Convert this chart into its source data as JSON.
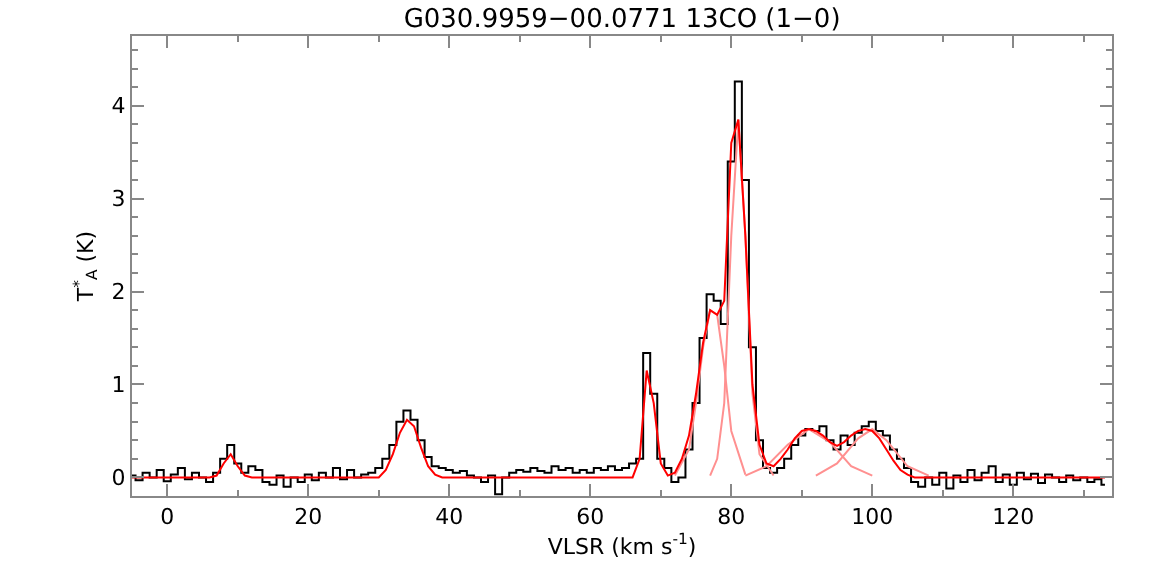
{
  "chart_data": {
    "type": "line",
    "title": "G030.9959−00.0771 13CO (1−0)",
    "xlabel": "VLSR (km s$^{-1}$)",
    "ylabel": "T$^{*}$$_{A}$ (K)",
    "xlim": [
      -5,
      134
    ],
    "ylim": [
      -0.2,
      4.75
    ],
    "xticks": [
      0,
      20,
      40,
      60,
      80,
      100,
      120
    ],
    "yticks": [
      0,
      1,
      2,
      3,
      4
    ],
    "series": [
      {
        "type": "step",
        "color": "#000000",
        "x": [
          -5,
          -4,
          -3,
          -2,
          -1,
          0,
          1,
          2,
          3,
          4,
          5,
          6,
          7,
          8,
          9,
          10,
          11,
          12,
          13,
          14,
          15,
          16,
          17,
          18,
          19,
          20,
          21,
          22,
          23,
          24,
          25,
          26,
          27,
          28,
          29,
          30,
          31,
          32,
          33,
          34,
          35,
          36,
          37,
          38,
          39,
          40,
          41,
          42,
          43,
          44,
          45,
          46,
          47,
          48,
          49,
          50,
          51,
          52,
          53,
          54,
          55,
          56,
          57,
          58,
          59,
          60,
          61,
          62,
          63,
          64,
          65,
          66,
          67,
          68,
          69,
          70,
          71,
          72,
          73,
          74,
          75,
          76,
          77,
          78,
          79,
          80,
          81,
          82,
          83,
          84,
          85,
          86,
          87,
          88,
          89,
          90,
          91,
          92,
          93,
          94,
          95,
          96,
          97,
          98,
          99,
          100,
          101,
          102,
          103,
          104,
          105,
          106,
          107,
          108,
          109,
          110,
          111,
          112,
          113,
          114,
          115,
          116,
          117,
          118,
          119,
          120,
          121,
          122,
          123,
          124,
          125,
          126,
          127,
          128,
          129,
          130,
          131,
          132,
          133
        ],
        "values": [
          0.02,
          -0.03,
          0.05,
          0.0,
          0.08,
          -0.04,
          0.03,
          0.1,
          -0.02,
          0.05,
          0.0,
          -0.05,
          0.05,
          0.2,
          0.35,
          0.15,
          0.05,
          0.12,
          0.08,
          -0.05,
          -0.08,
          0.02,
          -0.1,
          0.0,
          -0.05,
          0.03,
          -0.03,
          0.05,
          0.0,
          0.1,
          -0.02,
          0.08,
          0.0,
          0.03,
          0.05,
          0.1,
          0.2,
          0.35,
          0.6,
          0.72,
          0.62,
          0.4,
          0.22,
          0.12,
          0.1,
          0.08,
          0.05,
          0.07,
          0.02,
          0.0,
          -0.05,
          0.02,
          -0.18,
          0.0,
          0.05,
          0.08,
          0.06,
          0.1,
          0.07,
          0.05,
          0.12,
          0.08,
          0.1,
          0.05,
          0.08,
          0.05,
          0.1,
          0.08,
          0.12,
          0.08,
          0.1,
          0.15,
          0.2,
          1.34,
          0.9,
          0.2,
          0.1,
          -0.05,
          0.0,
          0.3,
          0.8,
          1.5,
          1.97,
          1.9,
          1.65,
          3.4,
          4.26,
          3.2,
          1.4,
          0.4,
          0.1,
          0.05,
          0.1,
          0.2,
          0.35,
          0.45,
          0.52,
          0.5,
          0.55,
          0.4,
          0.3,
          0.45,
          0.35,
          0.48,
          0.55,
          0.6,
          0.5,
          0.45,
          0.3,
          0.2,
          0.1,
          -0.05,
          -0.1,
          0.0,
          -0.08,
          0.05,
          -0.12,
          0.02,
          -0.05,
          0.08,
          -0.03,
          0.05,
          0.12,
          -0.05,
          0.03,
          -0.08,
          0.05,
          -0.02,
          0.04,
          -0.06,
          0.03,
          0.0,
          -0.05,
          0.02,
          -0.03,
          0.0,
          -0.05,
          -0.02,
          -0.08
        ]
      },
      {
        "type": "line",
        "color": "#ff9090",
        "x": [
          72,
          74,
          75,
          76,
          77,
          78,
          79,
          80,
          82
        ],
        "values": [
          0.02,
          0.3,
          0.8,
          1.4,
          1.8,
          1.75,
          1.2,
          0.5,
          0.03
        ]
      },
      {
        "type": "line",
        "color": "#ff9090",
        "x": [
          77,
          78,
          79,
          80,
          81,
          82,
          83,
          84,
          86
        ],
        "values": [
          0.02,
          0.2,
          0.8,
          2.6,
          3.85,
          2.6,
          0.9,
          0.25,
          0.02
        ]
      },
      {
        "type": "line",
        "color": "#ff9090",
        "x": [
          82,
          85,
          88,
          91,
          94,
          97,
          100
        ],
        "values": [
          0.02,
          0.12,
          0.35,
          0.52,
          0.38,
          0.12,
          0.02
        ]
      },
      {
        "type": "line",
        "color": "#ff9090",
        "x": [
          92,
          95,
          98,
          100,
          102,
          105,
          108
        ],
        "values": [
          0.02,
          0.15,
          0.42,
          0.52,
          0.4,
          0.12,
          0.02
        ]
      },
      {
        "color": "#ff0000",
        "x": [
          -5,
          6,
          7,
          8,
          9,
          10,
          11,
          12,
          30,
          31,
          32,
          33,
          34,
          35,
          36,
          37,
          38,
          39,
          66,
          67,
          68,
          69,
          70,
          71,
          72,
          73,
          74,
          75,
          76,
          77,
          78,
          79,
          80,
          81,
          82,
          83,
          84,
          85,
          86,
          87,
          88,
          89,
          90,
          91,
          92,
          93,
          94,
          95,
          96,
          97,
          98,
          99,
          100,
          101,
          102,
          103,
          104,
          105,
          106,
          133
        ],
        "values": [
          0,
          0,
          0.02,
          0.15,
          0.25,
          0.12,
          0.02,
          0,
          0,
          0.08,
          0.25,
          0.48,
          0.62,
          0.55,
          0.32,
          0.12,
          0.03,
          0,
          0,
          0.2,
          1.15,
          0.8,
          0.15,
          0.02,
          0.05,
          0.2,
          0.45,
          0.9,
          1.45,
          1.8,
          1.75,
          1.9,
          3.6,
          3.85,
          2.6,
          1.0,
          0.35,
          0.15,
          0.12,
          0.2,
          0.3,
          0.42,
          0.5,
          0.52,
          0.5,
          0.45,
          0.38,
          0.34,
          0.38,
          0.45,
          0.5,
          0.52,
          0.5,
          0.42,
          0.3,
          0.18,
          0.08,
          0.03,
          0,
          0
        ]
      }
    ]
  }
}
